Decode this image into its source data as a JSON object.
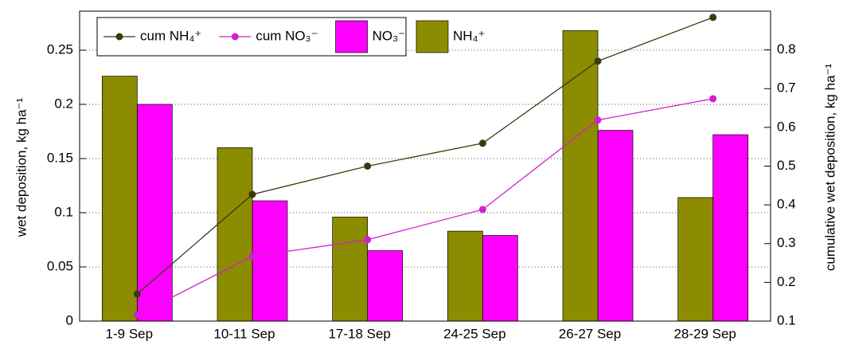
{
  "chart_data": {
    "type": "bar",
    "ylabel": "wet deposition, kg ha⁻¹",
    "y2label": "cumulative wet deposition, kg ha⁻¹",
    "categories": [
      "1-9 Sep",
      "10-11 Sep",
      "17-18 Sep",
      "24-25 Sep",
      "26-27 Sep",
      "28-29 Sep"
    ],
    "series": [
      {
        "name": "cum NH₄⁺",
        "type": "line",
        "axis": "y2",
        "color": "#3a3a10",
        "values": [
          0.17,
          0.427,
          0.5,
          0.559,
          0.771,
          0.884
        ]
      },
      {
        "name": "cum NO₃⁻",
        "type": "line",
        "axis": "y2",
        "color": "#d020d0",
        "values": [
          0.116,
          0.267,
          0.31,
          0.388,
          0.619,
          0.674
        ]
      },
      {
        "name": "NO₃⁻",
        "type": "bar",
        "color": "#ff00ff",
        "values": [
          0.2,
          0.111,
          0.065,
          0.079,
          0.176,
          0.172
        ]
      },
      {
        "name": "NH₄⁺",
        "type": "bar",
        "color": "#8c8c00",
        "values": [
          0.226,
          0.16,
          0.096,
          0.083,
          0.268,
          0.114
        ]
      }
    ],
    "ylim": [
      0,
      0.286
    ],
    "yticks": [
      0,
      0.05,
      0.1,
      0.15,
      0.2,
      0.25
    ],
    "y2lim": [
      0.1,
      0.9
    ],
    "y2ticks": [
      0.1,
      0.2,
      0.3,
      0.4,
      0.5,
      0.6,
      0.7,
      0.8
    ],
    "grid": true,
    "legend": "top-left"
  }
}
